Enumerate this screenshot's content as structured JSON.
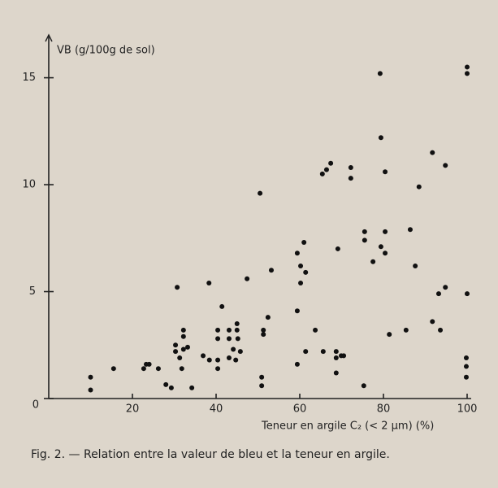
{
  "chart_data": {
    "type": "scatter",
    "y_label": "VB (g/100g de sol)",
    "x_label": "Teneur en argile C₂ (< 2 µm) (%)",
    "caption": "Fig. 2. — Relation entre la valeur de bleu et la teneur en argile.",
    "color": "#111111",
    "xlim": [
      0,
      100
    ],
    "ylim": [
      0,
      17
    ],
    "xticks": [
      20,
      40,
      60,
      80,
      100
    ],
    "yticks": [
      0,
      5,
      10,
      15
    ],
    "x": [
      10,
      10,
      15.5,
      22.7,
      23.3,
      24,
      26.2,
      28,
      29.3,
      30.3,
      30.3,
      30.7,
      31.3,
      32.2,
      32.2,
      32.2,
      31.8,
      33.2,
      34.2,
      36.9,
      38.3,
      38.4,
      40.4,
      40.4,
      40.4,
      40.4,
      41.4,
      43.1,
      43.1,
      43.1,
      44.1,
      45,
      45,
      45.2,
      44.7,
      45.8,
      47.4,
      50.5,
      50.9,
      50.9,
      51.3,
      51.3,
      52.4,
      53.2,
      59.4,
      59.4,
      59.4,
      60.2,
      60.2,
      61,
      61.4,
      61.4,
      63.7,
      65.4,
      66.4,
      67.4,
      65.6,
      68.7,
      68.7,
      68.7,
      69.1,
      69.9,
      70.5,
      72.2,
      72.2,
      75.3,
      75.5,
      75.5,
      77.5,
      79.2,
      79.4,
      79.4,
      80.4,
      80.4,
      80.4,
      81.4,
      85.4,
      86.4,
      87.6,
      88.5,
      91.7,
      91.7,
      93.2,
      93.6,
      94.8,
      94.8,
      100,
      100,
      100,
      99.8,
      99.8,
      99.8
    ],
    "values": [
      1.0,
      0.4,
      1.4,
      1.4,
      1.6,
      1.6,
      1.4,
      0.65,
      0.5,
      2.5,
      2.2,
      5.2,
      1.9,
      3.2,
      2.9,
      2.3,
      1.4,
      2.4,
      0.5,
      2.0,
      5.4,
      1.8,
      1.8,
      1.4,
      3.2,
      2.8,
      4.3,
      1.9,
      3.2,
      2.8,
      2.3,
      3.5,
      3.2,
      2.8,
      1.8,
      2.2,
      5.6,
      9.6,
      1.0,
      0.6,
      3.2,
      3.0,
      3.8,
      6.0,
      6.8,
      4.1,
      1.6,
      6.2,
      5.4,
      7.3,
      5.9,
      2.2,
      3.2,
      10.5,
      10.7,
      11.0,
      2.2,
      2.2,
      1.9,
      1.2,
      7.0,
      2.0,
      2.0,
      10.8,
      10.3,
      0.6,
      7.8,
      7.4,
      6.4,
      15.2,
      12.2,
      7.1,
      7.8,
      10.6,
      6.8,
      3.0,
      3.2,
      7.9,
      6.2,
      9.9,
      11.5,
      3.6,
      4.9,
      3.2,
      10.9,
      5.2,
      15.5,
      15.2,
      4.9,
      1.9,
      1.5,
      1.0
    ]
  }
}
